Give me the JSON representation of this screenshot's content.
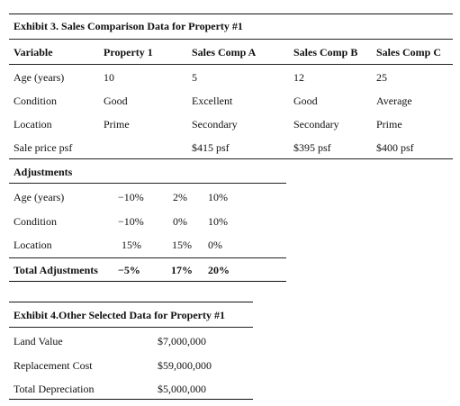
{
  "exhibit3": {
    "title": "Exhibit 3. Sales Comparison Data for Property #1",
    "headers": [
      "Variable",
      "Property 1",
      "Sales Comp A",
      "Sales Comp B",
      "Sales Comp C"
    ],
    "rows": [
      {
        "label": "Age (years)",
        "p1": "10",
        "a": "5",
        "b": "12",
        "c": "25"
      },
      {
        "label": "Condition",
        "p1": "Good",
        "a": "Excellent",
        "b": "Good",
        "c": "Average"
      },
      {
        "label": "Location",
        "p1": "Prime",
        "a": "Secondary",
        "b": "Secondary",
        "c": "Prime"
      },
      {
        "label": "Sale price psf",
        "p1": "",
        "a": "$415 psf",
        "b": "$395 psf",
        "c": "$400 psf"
      }
    ],
    "adjustments": {
      "title": "Adjustments",
      "rows": [
        {
          "label": "Age (years)",
          "v1": "−10%",
          "v2": "2%",
          "v3": "10%"
        },
        {
          "label": "Condition",
          "v1": "−10%",
          "v2": "0%",
          "v3": "10%"
        },
        {
          "label": "Location",
          "v1": "15%",
          "v2": "15%",
          "v3": "0%"
        }
      ],
      "total": {
        "label": "Total Adjustments",
        "v1": "−5%",
        "v2": "17%",
        "v3": "20%"
      }
    }
  },
  "exhibit4": {
    "title": "Exhibit 4.Other Selected Data for Property #1",
    "rows": [
      {
        "label": "Land Value",
        "value": "$7,000,000"
      },
      {
        "label": "Replacement Cost",
        "value": "$59,000,000"
      },
      {
        "label": "Total Depreciation",
        "value": "$5,000,000"
      }
    ]
  }
}
